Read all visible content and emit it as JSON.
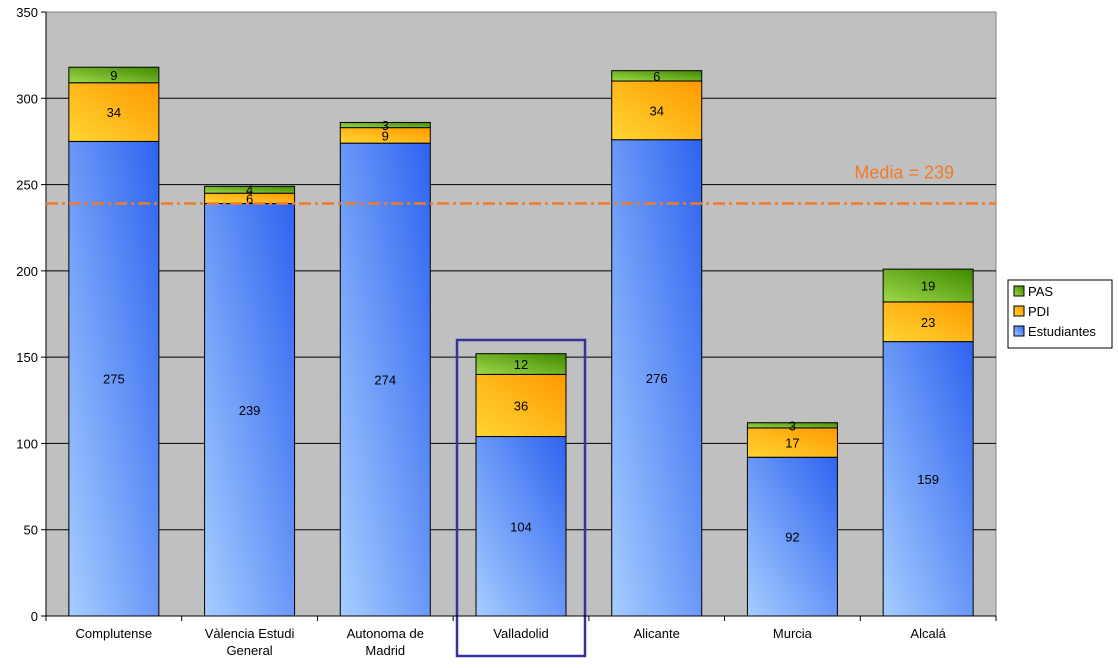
{
  "chart_data": {
    "type": "bar",
    "stacked": true,
    "title": "",
    "xlabel": "",
    "ylabel": "",
    "ylim": [
      0,
      350
    ],
    "yticks": [
      0,
      50,
      100,
      150,
      200,
      250,
      300,
      350
    ],
    "grid": true,
    "categories": [
      [
        "Complutense"
      ],
      [
        "Vàlencia Estudi",
        "General"
      ],
      [
        "Autonoma de",
        "Madrid"
      ],
      [
        "Valladolid"
      ],
      [
        "Alicante"
      ],
      [
        "Murcia"
      ],
      [
        "Alcalá"
      ]
    ],
    "series": [
      {
        "name": "Estudiantes",
        "values": [
          275,
          239,
          274,
          104,
          276,
          92,
          159
        ]
      },
      {
        "name": "PDI",
        "values": [
          34,
          6,
          9,
          36,
          34,
          17,
          23
        ]
      },
      {
        "name": "PAS",
        "values": [
          9,
          4,
          3,
          12,
          6,
          3,
          19
        ]
      }
    ],
    "reference_line": {
      "value": 239,
      "label": "Media = 239"
    },
    "highlighted_category_index": 3,
    "legend_position": "right",
    "colors": {
      "Estudiantes": "#6f9bff",
      "PDI": "#ffc61a",
      "PAS": "#77b61c",
      "reference_line": "#f07a2a",
      "highlight_box": "#333399",
      "plot_background": "#c0c0c0"
    }
  }
}
